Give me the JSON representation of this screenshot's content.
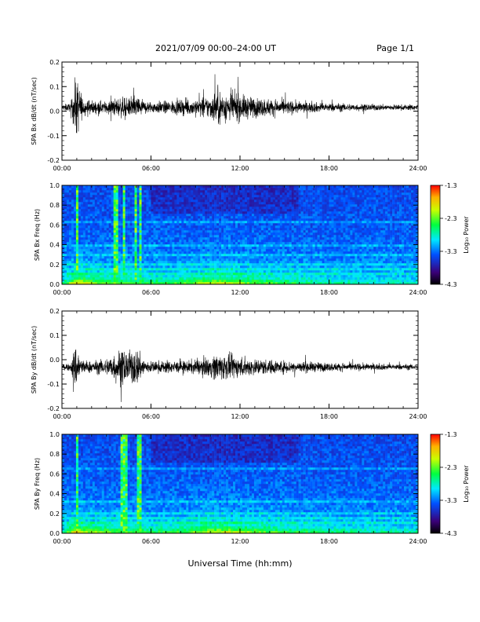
{
  "header": {
    "title": "2021/07/09  00:00–24:00 UT",
    "page": "Page 1/1"
  },
  "xlabel": "Universal Time (hh:mm)",
  "x_ticks": [
    "00:00",
    "06:00",
    "12:00",
    "18:00",
    "24:00"
  ],
  "colorbar": {
    "label": "Log₁₀ Power",
    "ticks": [
      "-1.3",
      "-2.3",
      "-3.3",
      "-4.3"
    ],
    "range": [
      -4.3,
      -1.3
    ]
  },
  "chart_data": [
    {
      "type": "line",
      "ylabel": "SPA Bx dB/dt (nT/sec)",
      "xlim": [
        0,
        24
      ],
      "ylim": [
        -0.2,
        0.2
      ],
      "y_ticks": [
        "0.2",
        "0.1",
        "0.0",
        "-0.1",
        "-0.2"
      ],
      "y_tick_values": [
        0.2,
        0.1,
        0.0,
        -0.1,
        -0.2
      ],
      "baseline": 0.015,
      "envelope": {
        "x": [
          0,
          0.6,
          0.9,
          1.0,
          1.2,
          1.4,
          2.0,
          3.0,
          3.5,
          4.0,
          4.5,
          5.0,
          5.5,
          6.0,
          7.0,
          8.0,
          9.0,
          10.0,
          10.5,
          11.0,
          11.5,
          12.0,
          13.0,
          14.0,
          15.0,
          16.0,
          17.0,
          18.0,
          20.0,
          22.0,
          24.0
        ],
        "amp": [
          0.02,
          0.03,
          0.2,
          0.2,
          0.15,
          0.06,
          0.05,
          0.04,
          0.06,
          0.07,
          0.06,
          0.09,
          0.05,
          0.04,
          0.045,
          0.05,
          0.06,
          0.08,
          0.13,
          0.1,
          0.11,
          0.09,
          0.07,
          0.06,
          0.05,
          0.04,
          0.035,
          0.03,
          0.025,
          0.02,
          0.02
        ]
      }
    },
    {
      "type": "heatmap",
      "ylabel": "SPA Bx Freq (Hz)",
      "xlim": [
        0,
        24
      ],
      "ylim": [
        0,
        1.0
      ],
      "y_ticks": [
        "1.0",
        "0.8",
        "0.6",
        "0.4",
        "0.2",
        "0.0"
      ],
      "y_tick_values": [
        1.0,
        0.8,
        0.6,
        0.4,
        0.2,
        0.0
      ],
      "bursts": [
        1.0,
        3.6,
        4.2,
        5.0,
        5.3
      ],
      "lines_hz": [
        0.64,
        0.4,
        0.3,
        0.2,
        0.15,
        0.1
      ],
      "activity": {
        "x": [
          0,
          1,
          2,
          4,
          6,
          8,
          10,
          11,
          12,
          14,
          16,
          18,
          20,
          24
        ],
        "v": [
          0.3,
          1,
          0.7,
          0.6,
          0.5,
          0.55,
          0.8,
          0.85,
          0.7,
          0.55,
          0.45,
          0.35,
          0.3,
          0.25
        ]
      }
    },
    {
      "type": "line",
      "ylabel": "SPA By dB/dt (nT/sec)",
      "xlim": [
        0,
        24
      ],
      "ylim": [
        -0.2,
        0.2
      ],
      "y_ticks": [
        "0.2",
        "0.1",
        "0.0",
        "-0.1",
        "-0.2"
      ],
      "y_tick_values": [
        0.2,
        0.1,
        0.0,
        -0.1,
        -0.2
      ],
      "baseline": -0.03,
      "envelope": {
        "x": [
          0,
          0.6,
          0.9,
          1.0,
          1.2,
          1.4,
          2.0,
          3.0,
          3.5,
          4.0,
          4.5,
          5.0,
          5.5,
          6.0,
          7.0,
          8.0,
          9.0,
          10.0,
          10.5,
          11.0,
          11.5,
          12.0,
          13.0,
          14.0,
          15.0,
          16.0,
          17.0,
          18.0,
          20.0,
          22.0,
          24.0
        ],
        "amp": [
          0.015,
          0.03,
          0.16,
          0.15,
          0.09,
          0.05,
          0.04,
          0.06,
          0.1,
          0.13,
          0.1,
          0.14,
          0.06,
          0.04,
          0.045,
          0.04,
          0.05,
          0.07,
          0.1,
          0.09,
          0.08,
          0.07,
          0.06,
          0.05,
          0.045,
          0.04,
          0.035,
          0.03,
          0.025,
          0.02,
          0.02
        ]
      }
    },
    {
      "type": "heatmap",
      "ylabel": "SPA By Freq (Hz)",
      "xlim": [
        0,
        24
      ],
      "ylim": [
        0,
        1.0
      ],
      "y_ticks": [
        "1.0",
        "0.8",
        "0.6",
        "0.4",
        "0.2",
        "0.0"
      ],
      "y_tick_values": [
        1.0,
        0.8,
        0.6,
        0.4,
        0.2,
        0.0
      ],
      "bursts": [
        1.0,
        4.1,
        4.3,
        5.2
      ],
      "lines_hz": [
        0.65,
        0.32,
        0.2,
        0.15,
        0.1
      ],
      "activity": {
        "x": [
          0,
          1,
          2,
          4,
          6,
          8,
          10,
          11,
          12,
          14,
          16,
          18,
          20,
          24
        ],
        "v": [
          0.3,
          1,
          0.7,
          0.6,
          0.5,
          0.55,
          0.8,
          0.85,
          0.75,
          0.6,
          0.5,
          0.4,
          0.35,
          0.3
        ]
      }
    }
  ]
}
